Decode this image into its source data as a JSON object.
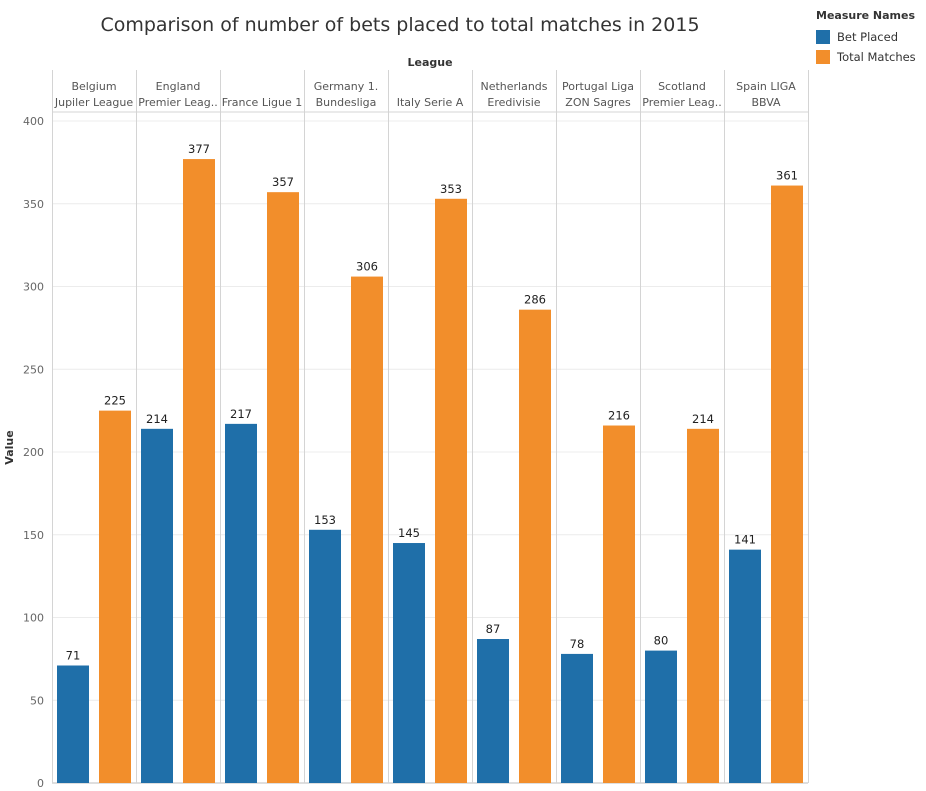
{
  "chart_data": {
    "type": "bar",
    "title": "Comparison of number of  bets placed to total matches in 2015",
    "column_header": "League",
    "xlabel": "",
    "ylabel": "Value",
    "ylim": [
      0,
      400
    ],
    "yticks": [
      0,
      50,
      100,
      150,
      200,
      250,
      300,
      350,
      400
    ],
    "categories": [
      [
        "Belgium",
        "Jupiler League"
      ],
      [
        "England",
        "Premier Leag.."
      ],
      [
        "France Ligue 1"
      ],
      [
        "Germany 1.",
        "Bundesliga"
      ],
      [
        "Italy Serie A"
      ],
      [
        "Netherlands",
        "Eredivisie"
      ],
      [
        "Portugal Liga",
        "ZON Sagres"
      ],
      [
        "Scotland",
        "Premier Leag.."
      ],
      [
        "Spain LIGA",
        "BBVA"
      ]
    ],
    "series": [
      {
        "name": "Bet Placed",
        "color": "#1f6fa9",
        "values": [
          71,
          214,
          217,
          153,
          145,
          87,
          78,
          80,
          141
        ]
      },
      {
        "name": "Total Matches",
        "color": "#f28e2b",
        "values": [
          225,
          377,
          357,
          306,
          353,
          286,
          216,
          214,
          361
        ]
      }
    ],
    "legend": {
      "title": "Measure Names",
      "position": "top-right"
    },
    "grid": true
  }
}
